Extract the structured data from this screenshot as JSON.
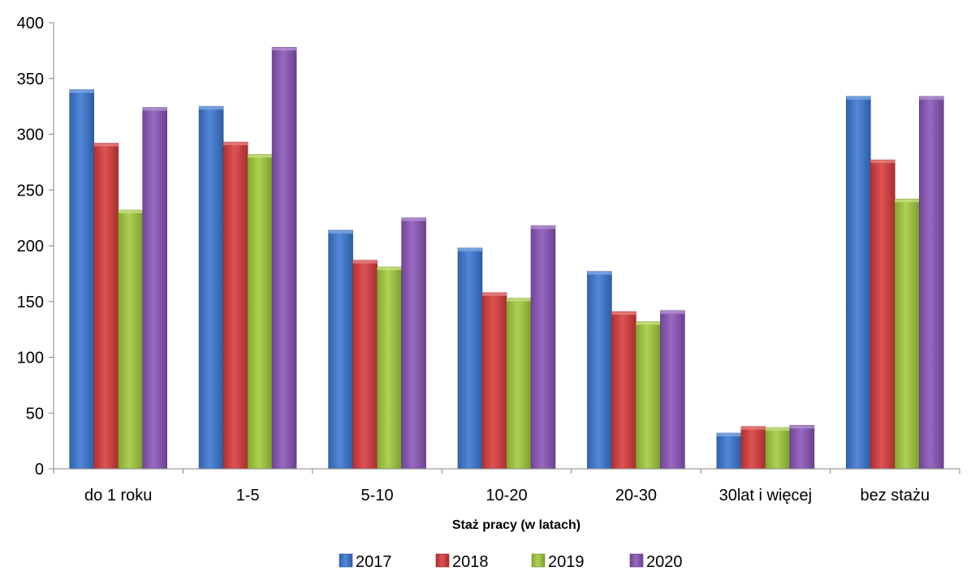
{
  "chart_data": {
    "type": "bar",
    "xlabel": "Staż pracy (w latach)",
    "ylabel": "",
    "ylim": [
      0,
      400
    ],
    "yticks": [
      0,
      50,
      100,
      150,
      200,
      250,
      300,
      350,
      400
    ],
    "grid": false,
    "legend_position": "bottom",
    "categories": [
      "do 1 roku",
      "1-5",
      "5-10",
      "10-20",
      "20-30",
      "30lat i więcej",
      "bez stażu"
    ],
    "series": [
      {
        "name": "2017",
        "color": "#3a78d4",
        "values": [
          340,
          325,
          214,
          198,
          177,
          32,
          334
        ]
      },
      {
        "name": "2018",
        "color": "#d93b3b",
        "values": [
          292,
          293,
          187,
          158,
          141,
          38,
          277
        ]
      },
      {
        "name": "2019",
        "color": "#a2cc3a",
        "values": [
          232,
          282,
          181,
          153,
          132,
          37,
          242
        ]
      },
      {
        "name": "2020",
        "color": "#8a55b8",
        "values": [
          324,
          378,
          225,
          218,
          142,
          39,
          334
        ]
      }
    ]
  }
}
